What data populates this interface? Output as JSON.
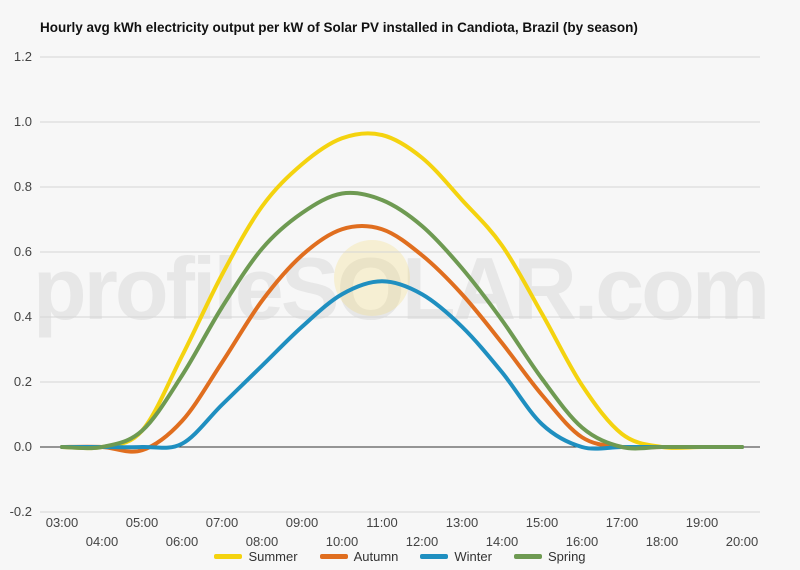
{
  "title": "Hourly avg kWh electricity output per kW of Solar PV installed in Candiota, Brazil (by season)",
  "watermark": "profileSOLAR.com",
  "chart_data": {
    "type": "line",
    "title": "Hourly avg kWh electricity output per kW of Solar PV installed in Candiota, Brazil (by season)",
    "x": [
      "03:00",
      "04:00",
      "05:00",
      "06:00",
      "07:00",
      "08:00",
      "09:00",
      "10:00",
      "11:00",
      "12:00",
      "13:00",
      "14:00",
      "15:00",
      "16:00",
      "17:00",
      "18:00",
      "19:00",
      "20:00"
    ],
    "ylim": [
      -0.2,
      1.2
    ],
    "yticks": [
      "1.2",
      "1.0",
      "0.8",
      "0.6",
      "0.4",
      "0.2",
      "0.0",
      "-0.2"
    ],
    "grid": true,
    "legend_position": "bottom",
    "series": [
      {
        "name": "Summer",
        "color": "#f4d30f",
        "values": [
          0.0,
          0.0,
          0.05,
          0.28,
          0.53,
          0.74,
          0.87,
          0.95,
          0.96,
          0.89,
          0.76,
          0.62,
          0.41,
          0.19,
          0.04,
          0.0,
          0.0,
          0.0
        ]
      },
      {
        "name": "Autumn",
        "color": "#e06e1f",
        "values": [
          0.0,
          0.0,
          -0.01,
          0.08,
          0.26,
          0.45,
          0.59,
          0.67,
          0.67,
          0.59,
          0.47,
          0.32,
          0.16,
          0.03,
          0.0,
          0.0,
          0.0,
          0.0
        ]
      },
      {
        "name": "Winter",
        "color": "#1f8fc0",
        "values": [
          0.0,
          0.0,
          0.0,
          0.01,
          0.13,
          0.25,
          0.37,
          0.47,
          0.51,
          0.47,
          0.37,
          0.23,
          0.07,
          0.0,
          0.0,
          0.0,
          0.0,
          0.0
        ]
      },
      {
        "name": "Spring",
        "color": "#6e9a52",
        "values": [
          0.0,
          0.0,
          0.05,
          0.22,
          0.43,
          0.61,
          0.72,
          0.78,
          0.76,
          0.68,
          0.55,
          0.39,
          0.21,
          0.06,
          0.0,
          0.0,
          0.0,
          0.0
        ]
      }
    ]
  }
}
